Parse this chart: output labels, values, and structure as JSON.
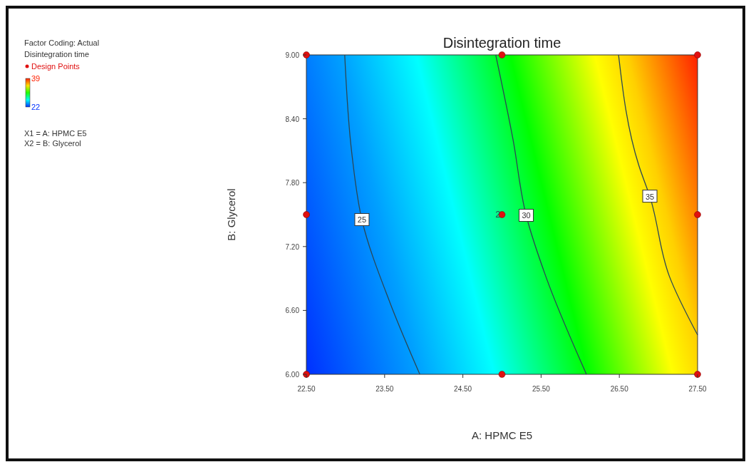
{
  "chart_data": {
    "type": "scatter",
    "title": "Disintegration time",
    "xlabel": "A: HPMC E5",
    "ylabel": "B: Glycerol",
    "legend_title": "Disintegration time",
    "annotations": [
      "Factor Coding: Actual",
      "X1 = A: HPMC E5",
      "X2 = B: Glycerol",
      {
        "text": "2",
        "x": 25,
        "y": 7.5
      }
    ],
    "clim": [
      22,
      39
    ],
    "cticks": [
      22,
      39
    ],
    "xlim": [
      22.5,
      27.5
    ],
    "ylim": [
      6,
      9
    ],
    "xticks": [
      {
        "value": 22.5,
        "label": "22.50"
      },
      {
        "value": 23.5,
        "label": "23.50"
      },
      {
        "value": 24.5,
        "label": "24.50"
      },
      {
        "value": 25.5,
        "label": "25.50"
      },
      {
        "value": 26.5,
        "label": "26.50"
      },
      {
        "value": 27.5,
        "label": "27.50"
      }
    ],
    "yticks": [
      {
        "value": 6,
        "label": "6.00"
      },
      {
        "value": 6.6,
        "label": "6.60"
      },
      {
        "value": 7.2,
        "label": "7.20"
      },
      {
        "value": 7.8,
        "label": "7.80"
      },
      {
        "value": 8.4,
        "label": "8.40"
      },
      {
        "value": 9,
        "label": "9.00"
      }
    ],
    "series": [
      {
        "type": "line",
        "name": "25",
        "color": "#2b4755",
        "x": [
          22.99,
          23.08,
          23.21,
          23.57,
          23.95
        ],
        "values": [
          9,
          8.08,
          7.45,
          6.67,
          6
        ]
      },
      {
        "type": "line",
        "name": "30",
        "color": "#2b4755",
        "x": [
          24.92,
          25.14,
          25.31,
          25.56,
          26.08
        ],
        "values": [
          9,
          8.21,
          7.49,
          6.92,
          6
        ]
      },
      {
        "type": "line",
        "name": "35",
        "color": "#2b4755",
        "x": [
          26.49,
          26.75,
          26.89,
          27.14,
          27.5
        ],
        "values": [
          9,
          7.96,
          7.67,
          6.92,
          6.37
        ]
      },
      {
        "type": "scatter",
        "name": "Design Points",
        "color": "#e01010",
        "x": [
          22.5,
          25,
          27.5,
          22.5,
          25,
          27.5,
          22.5,
          25,
          27.5
        ],
        "values": [
          9,
          9,
          9,
          7.5,
          7.5,
          7.5,
          6,
          6,
          6
        ]
      }
    ],
    "legend": "top left",
    "grid": false
  }
}
